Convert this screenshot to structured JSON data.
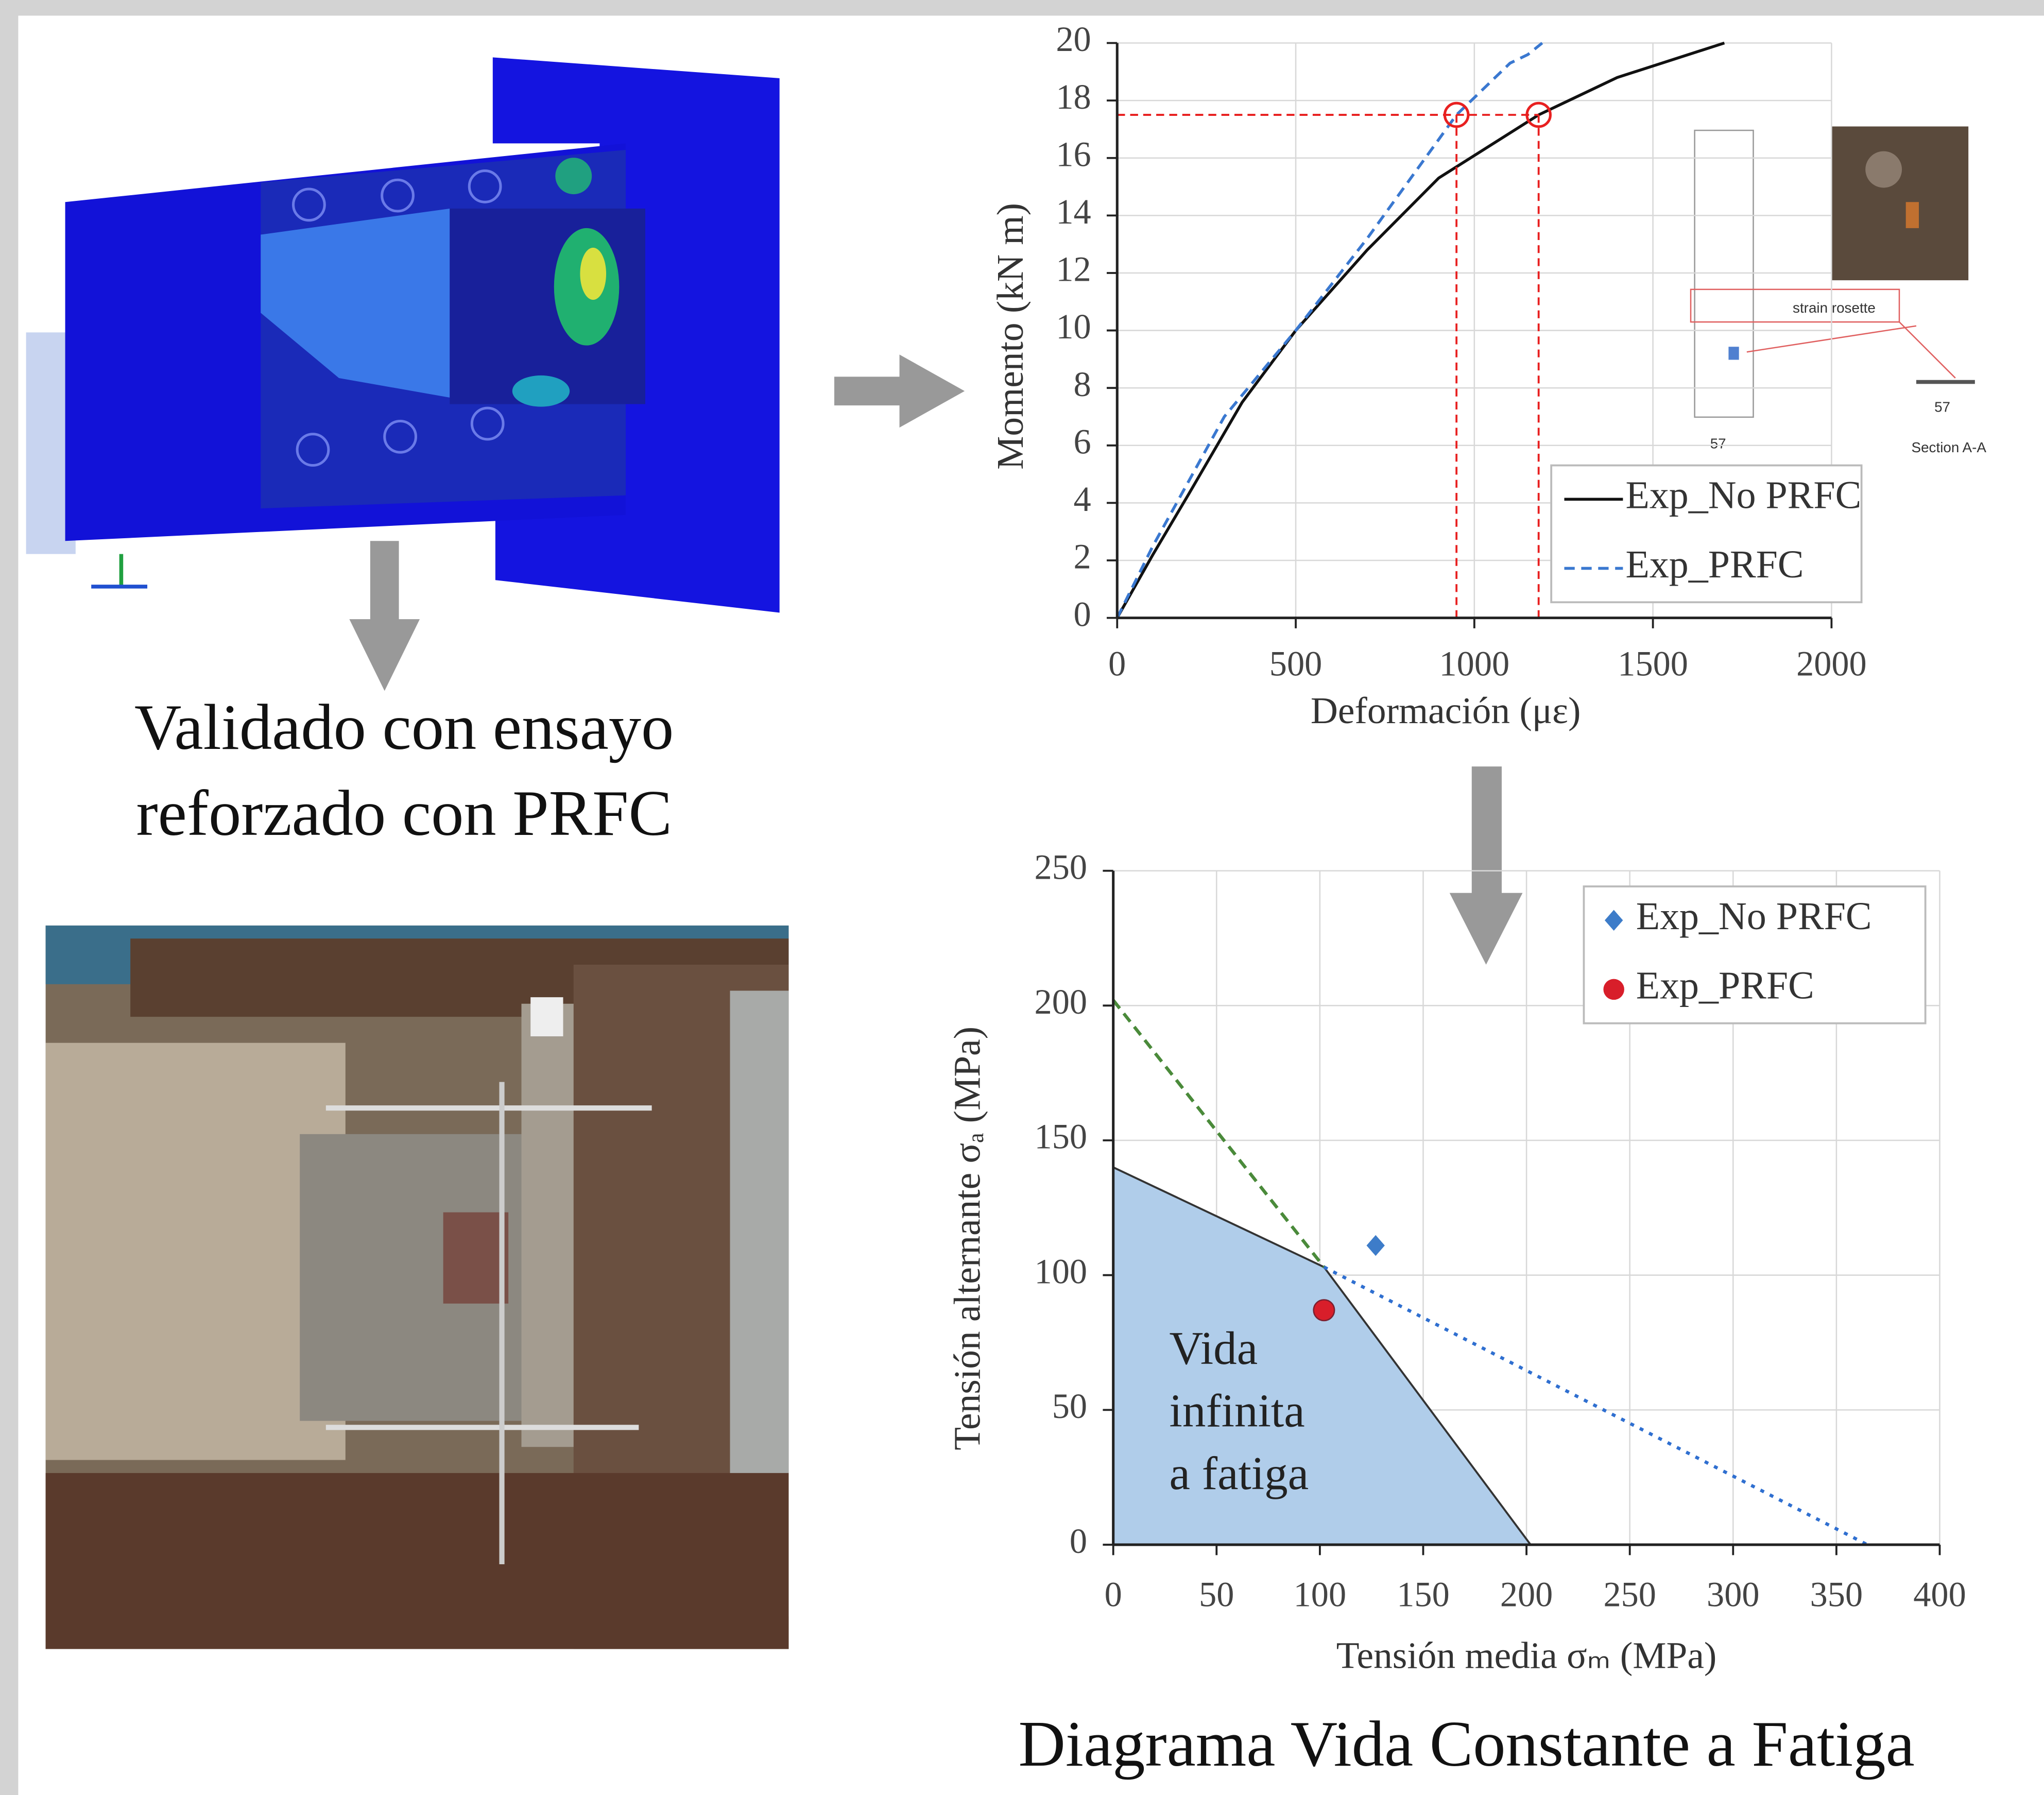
{
  "captions": {
    "validation": [
      "Validado con ensayo",
      "reforzado con PRFC"
    ],
    "diagram": "Diagrama Vida Constante a Fatiga"
  },
  "inset_labels": [
    "strain rosette",
    "Section A-A",
    "57",
    "57"
  ],
  "chart_data": [
    {
      "type": "line",
      "xlabel": "Deformación (με)",
      "ylabel": "Momento (kN m)",
      "xlim": [
        0,
        2000
      ],
      "xticks": [
        0,
        500,
        1000,
        1500,
        2000
      ],
      "ylim": [
        0,
        20
      ],
      "yticks": [
        0,
        2,
        4,
        6,
        8,
        10,
        12,
        14,
        16,
        18,
        20
      ],
      "grid": true,
      "series": [
        {
          "name": "Exp_No PRFC",
          "color": "#111111",
          "line_style": "solid",
          "x": [
            0,
            100,
            200,
            350,
            500,
            700,
            900,
            1180,
            1400,
            1700
          ],
          "values": [
            0,
            2.2,
            4.3,
            7.5,
            10,
            12.8,
            15.3,
            17.5,
            18.8,
            20
          ]
        },
        {
          "name": "Exp_PRFC",
          "color": "#3a78d0",
          "line_style": "dashed",
          "x": [
            0,
            100,
            300,
            500,
            700,
            950,
            1100,
            1150,
            1190
          ],
          "values": [
            0,
            2.5,
            7,
            10,
            13.2,
            17.5,
            19.3,
            19.6,
            20
          ]
        }
      ],
      "reference_points": {
        "color": "#e82020",
        "x": [
          950,
          1180
        ],
        "y": [
          17.5,
          17.5
        ]
      }
    },
    {
      "type": "scatter",
      "xlabel": "Tensión media σₘ (MPa)",
      "ylabel": "Tensión alternante σₐ (MPa)",
      "xlim": [
        0,
        400
      ],
      "xticks": [
        0,
        50,
        100,
        150,
        200,
        250,
        300,
        350,
        400
      ],
      "ylim": [
        0,
        250
      ],
      "yticks": [
        0,
        50,
        100,
        150,
        200,
        250
      ],
      "grid": true,
      "series": [
        {
          "name": "Exp_No PRFC",
          "color": "#3d7cc9",
          "marker": "diamond",
          "x": [
            127
          ],
          "values": [
            111
          ]
        },
        {
          "name": "Exp_PRFC",
          "color": "#d81e2a",
          "marker": "circle",
          "x": [
            102
          ],
          "values": [
            87
          ]
        }
      ],
      "region": {
        "color": "#b0cdea",
        "x": [
          0,
          102,
          202
        ],
        "y": [
          140,
          103,
          0
        ],
        "label": [
          "Vida",
          "infinita",
          "a fatiga"
        ]
      },
      "lines": [
        {
          "color": "#4a8a3a",
          "line_style": "dashed",
          "x": [
            0,
            102
          ],
          "y": [
            202,
            103
          ]
        },
        {
          "color": "#2f6fd0",
          "line_style": "dotted",
          "x": [
            102,
            365
          ],
          "y": [
            103,
            0
          ]
        }
      ]
    }
  ]
}
